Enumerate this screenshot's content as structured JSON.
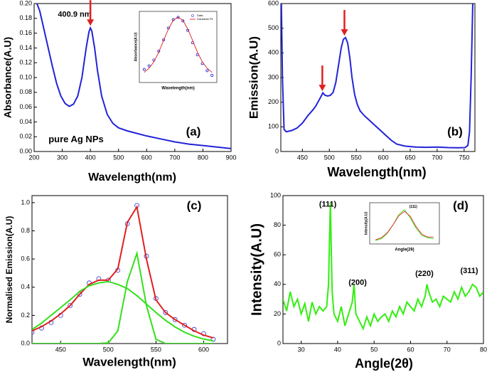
{
  "chart_data": [
    {
      "type": "line",
      "label": "(a)",
      "xlabel": "Wavelength(nm)",
      "ylabel": "Absorbance(A.U)",
      "xlim": [
        200,
        900
      ],
      "ylim": [
        0,
        0.2
      ],
      "xticks": [
        200,
        300,
        400,
        500,
        600,
        700,
        800,
        900
      ],
      "yticks": [
        {
          "value": 0,
          "label": "0.00"
        },
        0.02,
        0.04,
        0.06,
        0.08,
        {
          "value": 0.1,
          "label": "0.10"
        },
        0.12,
        0.14,
        0.16,
        0.18,
        {
          "value": 0.2,
          "label": "0.20"
        }
      ],
      "x": [
        210,
        220,
        235,
        250,
        265,
        280,
        295,
        310,
        325,
        340,
        355,
        370,
        385,
        395,
        400,
        405,
        415,
        425,
        440,
        460,
        480,
        500,
        530,
        560,
        600,
        650,
        700,
        750,
        800,
        850,
        900
      ],
      "series": [
        {
          "color": "#2323d8",
          "values": [
            0.2,
            0.19,
            0.165,
            0.14,
            0.115,
            0.092,
            0.075,
            0.065,
            0.061,
            0.064,
            0.075,
            0.1,
            0.14,
            0.162,
            0.167,
            0.163,
            0.14,
            0.11,
            0.075,
            0.05,
            0.038,
            0.032,
            0.028,
            0.025,
            0.021,
            0.017,
            0.013,
            0.01,
            0.008,
            0.006,
            0.004
          ]
        }
      ],
      "annotations": [
        {
          "text": "400.9 nm",
          "x": 344,
          "y": 0.185
        },
        {
          "text": "pure Ag NPs",
          "x": 349,
          "y": 0.016
        }
      ],
      "arrows": [
        {
          "x": 400,
          "y": 0.17,
          "color": "#e02020"
        }
      ],
      "inset": {
        "type": "line",
        "xlabel": "Wavelength(nm)",
        "ylabel": "Absorbance(A.U)",
        "xlim": [
          320,
          480
        ],
        "ylim": [
          0.05,
          0.17
        ],
        "legend": "upper right",
        "x": [
          330,
          340,
          350,
          360,
          370,
          380,
          390,
          400,
          410,
          420,
          430,
          440,
          450,
          460,
          470
        ],
        "series": [
          {
            "name": "Data",
            "color": "#2323d8",
            "marker": "o",
            "values": [
              0.072,
              0.078,
              0.088,
              0.103,
              0.122,
              0.142,
              0.156,
              0.16,
              0.154,
              0.138,
              0.117,
              0.097,
              0.082,
              0.07,
              0.062
            ]
          },
          {
            "name": "Gaussian Fit",
            "color": "#e02020",
            "values": [
              0.067,
              0.074,
              0.085,
              0.101,
              0.121,
              0.14,
              0.155,
              0.16,
              0.155,
              0.14,
              0.121,
              0.101,
              0.085,
              0.074,
              0.067
            ]
          }
        ]
      }
    },
    {
      "type": "line",
      "label": "(b)",
      "xlabel": "Wavelength(nm)",
      "ylabel": "Emission(A.U)",
      "xlim": [
        410,
        770
      ],
      "ylim": [
        0,
        600
      ],
      "xticks": [
        450,
        500,
        550,
        600,
        650,
        700,
        750
      ],
      "yticks": [
        0,
        100,
        200,
        300,
        400,
        500,
        600
      ],
      "x": [
        411,
        413,
        416,
        420,
        430,
        440,
        450,
        460,
        470,
        475,
        480,
        485,
        488,
        492,
        497,
        502,
        507,
        512,
        517,
        522,
        526,
        530,
        534,
        538,
        542,
        547,
        552,
        557,
        565,
        575,
        585,
        595,
        605,
        615,
        625,
        640,
        660,
        680,
        700,
        720,
        740,
        752,
        757,
        760,
        763,
        766
      ],
      "series": [
        {
          "color": "#2323d8",
          "values": [
            600,
            300,
            90,
            80,
            85,
            95,
            115,
            145,
            170,
            185,
            205,
            225,
            238,
            228,
            225,
            228,
            240,
            280,
            350,
            420,
            455,
            462,
            440,
            380,
            300,
            230,
            190,
            165,
            145,
            125,
            105,
            85,
            65,
            45,
            30,
            22,
            18,
            17,
            18,
            16,
            15,
            16,
            25,
            80,
            300,
            600
          ]
        }
      ],
      "arrows": [
        {
          "x": 487,
          "y": 245,
          "color": "#e02020"
        },
        {
          "x": 528,
          "y": 470,
          "color": "#e02020"
        }
      ]
    },
    {
      "type": "line",
      "label": "(c)",
      "xlabel": "Wavelength(nm)",
      "ylabel": "Normalised Emission(A.U)",
      "xlim": [
        420,
        625
      ],
      "ylim": [
        0,
        1.05
      ],
      "xticks": [
        450,
        500,
        550,
        600
      ],
      "yticks": [
        {
          "value": 0,
          "label": "0.0"
        },
        0.2,
        0.4,
        0.6,
        0.8,
        {
          "value": 1,
          "label": "1.0"
        }
      ],
      "x": [
        420,
        430,
        440,
        450,
        460,
        470,
        480,
        490,
        500,
        510,
        520,
        530,
        540,
        550,
        560,
        570,
        580,
        590,
        600,
        610
      ],
      "series": [
        {
          "color": "#3030c8",
          "marker": "o",
          "values": [
            0.08,
            0.11,
            0.15,
            0.2,
            0.27,
            0.35,
            0.43,
            0.46,
            0.45,
            0.52,
            0.85,
            0.98,
            0.62,
            0.32,
            0.22,
            0.17,
            0.13,
            0.1,
            0.07,
            0.03
          ]
        },
        {
          "color": "#e02020",
          "values": [
            0.09,
            0.12,
            0.16,
            0.21,
            0.27,
            0.35,
            0.42,
            0.45,
            0.45,
            0.53,
            0.86,
            0.97,
            0.6,
            0.31,
            0.22,
            0.17,
            0.13,
            0.09,
            0.06,
            0.04
          ]
        },
        {
          "color": "#33e01a",
          "values": [
            0.1,
            0.145,
            0.2,
            0.255,
            0.31,
            0.37,
            0.41,
            0.43,
            0.44,
            0.42,
            0.39,
            0.34,
            0.28,
            0.22,
            0.165,
            0.118,
            0.08,
            0.052,
            0.032,
            0.019
          ]
        },
        {
          "color": "#33e01a",
          "values": [
            0,
            0,
            0,
            0,
            0,
            0,
            0,
            0,
            0.005,
            0.09,
            0.44,
            0.64,
            0.27,
            0.03,
            0,
            0,
            0,
            0,
            0,
            0
          ]
        }
      ]
    },
    {
      "type": "line",
      "label": "(d)",
      "xlabel": "Angle(2θ)",
      "ylabel": "Intensity(A.U)",
      "xlim": [
        25,
        80
      ],
      "ylim": [
        0,
        100
      ],
      "xticks": [
        30,
        40,
        50,
        60,
        70,
        80
      ],
      "yticks": [
        0,
        20,
        40,
        60,
        80,
        100
      ],
      "x": [
        25,
        26,
        27,
        28,
        29,
        30,
        31,
        32,
        33,
        34,
        35,
        36,
        37,
        37.5,
        38,
        38.5,
        39,
        40,
        41,
        42,
        43,
        44,
        44.5,
        45,
        46,
        47,
        48,
        49,
        50,
        51,
        52,
        53,
        54,
        55,
        56,
        57,
        58,
        59,
        60,
        61,
        62,
        63,
        64,
        64.5,
        65,
        66,
        67,
        68,
        69,
        70,
        71,
        72,
        73,
        74,
        75,
        76,
        77,
        78,
        79,
        80
      ],
      "series": [
        {
          "color": "#33ee11",
          "values": [
            30,
            22,
            35,
            25,
            30,
            20,
            27,
            15,
            28,
            20,
            25,
            22,
            25,
            40,
            95,
            35,
            20,
            15,
            25,
            12,
            20,
            28,
            40,
            20,
            15,
            10,
            18,
            12,
            20,
            15,
            18,
            20,
            15,
            22,
            18,
            25,
            20,
            28,
            25,
            22,
            30,
            25,
            32,
            40,
            35,
            28,
            30,
            25,
            32,
            30,
            28,
            35,
            30,
            38,
            32,
            35,
            40,
            38,
            32,
            35
          ]
        }
      ],
      "annotations": [
        {
          "text": "(111)",
          "x": 37.3,
          "y": 94
        },
        {
          "text": "(200)",
          "x": 45.5,
          "y": 41
        },
        {
          "text": "(220)",
          "x": 63.8,
          "y": 47
        },
        {
          "text": "(311)",
          "x": 76.1,
          "y": 49
        }
      ],
      "inset": {
        "type": "line",
        "xlabel": "Angle(2θ)",
        "ylabel": "Intensity(A.U)",
        "xlim": [
          37,
          39.4
        ],
        "ylim": [
          0,
          1.2
        ],
        "x": [
          37.2,
          37.4,
          37.6,
          37.8,
          38,
          38.2,
          38.4,
          38.6,
          38.8,
          39,
          39.2
        ],
        "series": [
          {
            "color": "#33ee11",
            "values": [
              0.1,
              0.15,
              0.3,
              0.55,
              0.85,
              1,
              0.75,
              0.45,
              0.25,
              0.18,
              0.15
            ]
          },
          {
            "color": "#e02020",
            "values": [
              0.12,
              0.18,
              0.32,
              0.55,
              0.82,
              0.95,
              0.8,
              0.5,
              0.28,
              0.2,
              0.2
            ]
          }
        ],
        "annotations": [
          {
            "text": "(111)",
            "x": 38.5,
            "y": 1.08
          }
        ]
      }
    }
  ]
}
